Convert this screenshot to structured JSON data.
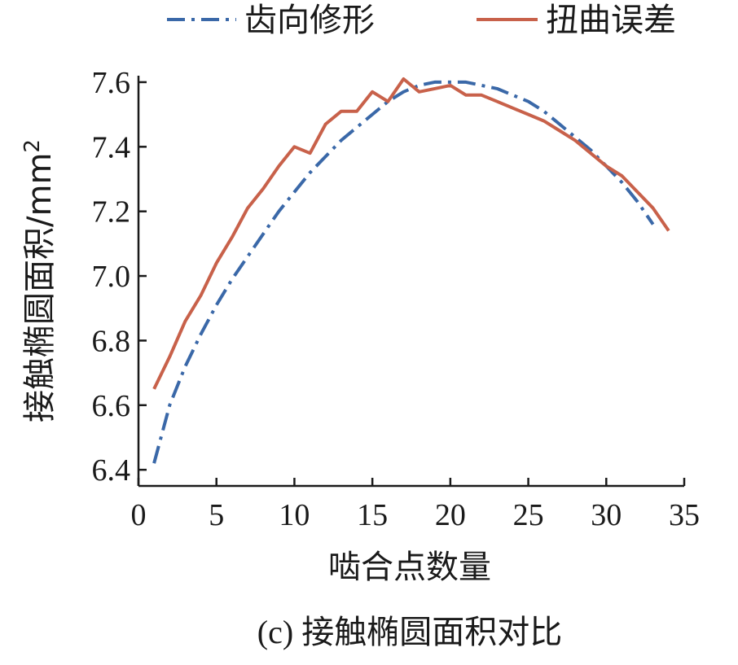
{
  "chart_data": {
    "type": "line",
    "title": "",
    "xlabel": "啮合点数量",
    "ylabel": "接触椭圆面积/mm",
    "ylabel_superscript": "2",
    "caption": "(c) 接触椭圆面积对比",
    "xlim": [
      0,
      35
    ],
    "ylim": [
      6.35,
      7.62
    ],
    "xticks": [
      "0",
      "5",
      "10",
      "15",
      "20",
      "25",
      "30",
      "35"
    ],
    "yticks": [
      "6.4",
      "6.6",
      "6.8",
      "7.0",
      "7.2",
      "7.4",
      "7.6"
    ],
    "grid": false,
    "legend_position": "top",
    "series": [
      {
        "name": "齿向修形",
        "color": "#3a68a8",
        "dash": "dash-dot",
        "x": [
          1,
          2,
          3,
          4,
          5,
          6,
          7,
          8,
          9,
          10,
          11,
          12,
          13,
          14,
          15,
          16,
          17,
          18,
          19,
          20,
          21,
          22,
          23,
          24,
          25,
          26,
          27,
          28,
          29,
          30,
          31,
          32,
          33
        ],
        "y": [
          6.42,
          6.6,
          6.72,
          6.82,
          6.91,
          6.99,
          7.06,
          7.13,
          7.2,
          7.26,
          7.32,
          7.37,
          7.42,
          7.46,
          7.5,
          7.54,
          7.57,
          7.59,
          7.6,
          7.6,
          7.6,
          7.59,
          7.58,
          7.56,
          7.54,
          7.51,
          7.47,
          7.43,
          7.39,
          7.34,
          7.29,
          7.23,
          7.16
        ]
      },
      {
        "name": "扭曲误差",
        "color": "#c8614a",
        "dash": "solid",
        "x": [
          1,
          2,
          3,
          4,
          5,
          6,
          7,
          8,
          9,
          10,
          11,
          12,
          13,
          14,
          15,
          16,
          17,
          18,
          19,
          20,
          21,
          22,
          23,
          24,
          25,
          26,
          27,
          28,
          29,
          30,
          31,
          32,
          33,
          34
        ],
        "y": [
          6.65,
          6.75,
          6.86,
          6.94,
          7.04,
          7.12,
          7.21,
          7.27,
          7.34,
          7.4,
          7.38,
          7.47,
          7.51,
          7.51,
          7.57,
          7.54,
          7.61,
          7.57,
          7.58,
          7.59,
          7.56,
          7.56,
          7.54,
          7.52,
          7.5,
          7.48,
          7.45,
          7.42,
          7.38,
          7.34,
          7.31,
          7.26,
          7.21,
          7.14
        ]
      }
    ]
  }
}
